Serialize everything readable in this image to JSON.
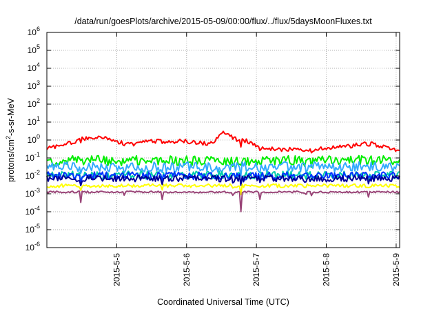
{
  "chart_data": {
    "type": "line",
    "title": "/data/run/goesPlots/archive/2015-05-09/00:00/flux/../flux/5daysMoonFluxes.txt",
    "xlabel": "Coordinated Universal Time (UTC)",
    "ylabel_parts": [
      "protons/cm",
      "2",
      "-s-sr-MeV"
    ],
    "y_scale": "log",
    "ylim_exp": [
      -6,
      6
    ],
    "y_tick_exponents": [
      -6,
      -5,
      -4,
      -3,
      -2,
      -1,
      0,
      1,
      2,
      3,
      4,
      5,
      6
    ],
    "y_tick_base": "10",
    "xlim_days": [
      4.0,
      9.05
    ],
    "x_ticks": [
      {
        "label": "2015-5-5",
        "day": 5
      },
      {
        "label": "2015-5-6",
        "day": 6
      },
      {
        "label": "2015-5-7",
        "day": 7
      },
      {
        "label": "2015-5-8",
        "day": 8
      },
      {
        "label": "2015-5-9",
        "day": 9
      }
    ],
    "grid": true,
    "series": [
      {
        "color": "#ff0000",
        "base": [
          [
            4.0,
            -0.45
          ],
          [
            4.3,
            -0.2
          ],
          [
            4.5,
            0.05
          ],
          [
            4.7,
            0.15
          ],
          [
            4.9,
            0.1
          ],
          [
            5.0,
            -0.1
          ],
          [
            5.2,
            -0.25
          ],
          [
            5.4,
            -0.1
          ],
          [
            5.6,
            -0.05
          ],
          [
            5.75,
            -0.15
          ],
          [
            5.9,
            -0.05
          ],
          [
            6.1,
            -0.1
          ],
          [
            6.3,
            -0.2
          ],
          [
            6.45,
            0.05
          ],
          [
            6.5,
            0.45
          ],
          [
            6.6,
            0.25
          ],
          [
            6.7,
            0.05
          ],
          [
            6.85,
            -0.05
          ],
          [
            7.0,
            -0.35
          ],
          [
            7.2,
            -0.45
          ],
          [
            7.4,
            -0.55
          ],
          [
            7.6,
            -0.5
          ],
          [
            7.8,
            -0.55
          ],
          [
            8.0,
            -0.45
          ],
          [
            8.3,
            -0.35
          ],
          [
            8.6,
            -0.2
          ],
          [
            8.9,
            -0.4
          ],
          [
            9.05,
            -0.7
          ]
        ],
        "amp": 0.12
      },
      {
        "color": "#00ee00",
        "base": [
          [
            4.0,
            -1.15
          ],
          [
            9.05,
            -1.15
          ]
        ],
        "amp": 0.28
      },
      {
        "color": "#33aaff",
        "base": [
          [
            4.0,
            -1.5
          ],
          [
            9.05,
            -1.5
          ]
        ],
        "amp": 0.28
      },
      {
        "color": "#00ccaa",
        "base": [
          [
            4.0,
            -1.95
          ],
          [
            9.05,
            -1.95
          ]
        ],
        "amp": 0.22
      },
      {
        "color": "#0033ff",
        "base": [
          [
            4.0,
            -2.0
          ],
          [
            9.05,
            -2.0
          ]
        ],
        "amp": 0.22
      },
      {
        "color": "#000099",
        "base": [
          [
            4.0,
            -2.15
          ],
          [
            9.05,
            -2.15
          ]
        ],
        "amp": 0.18
      },
      {
        "color": "#ffff00",
        "base": [
          [
            4.0,
            -2.55
          ],
          [
            9.05,
            -2.55
          ]
        ],
        "amp": 0.1
      },
      {
        "color": "#994477",
        "base": [
          [
            4.0,
            -2.9
          ],
          [
            9.05,
            -2.9
          ]
        ],
        "amp": 0.05
      }
    ],
    "dips": [
      {
        "day": 4.48,
        "depth": 1.0
      },
      {
        "day": 5.1,
        "depth": 0.5
      },
      {
        "day": 5.65,
        "depth": 0.5
      },
      {
        "day": 6.67,
        "depth": 0.6
      },
      {
        "day": 6.78,
        "depth": 1.4
      },
      {
        "day": 7.05,
        "depth": 0.4
      },
      {
        "day": 7.7,
        "depth": 0.45
      },
      {
        "day": 7.78,
        "depth": 0.55
      },
      {
        "day": 8.6,
        "depth": 0.4
      }
    ]
  }
}
